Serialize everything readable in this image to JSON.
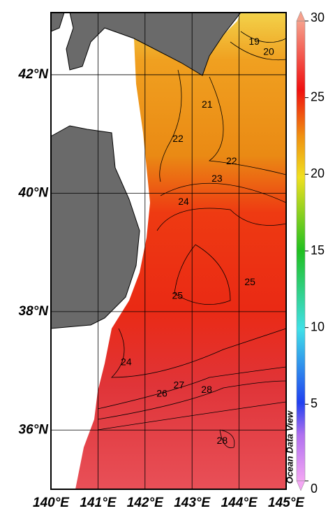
{
  "map": {
    "xlim": [
      140,
      145
    ],
    "ylim": [
      35,
      43.05
    ],
    "xticks": [
      {
        "value": 140,
        "label": "140°E"
      },
      {
        "value": 141,
        "label": "141°E"
      },
      {
        "value": 142,
        "label": "142°E"
      },
      {
        "value": 143,
        "label": "143°E"
      },
      {
        "value": 144,
        "label": "144°E"
      },
      {
        "value": 145,
        "label": "145°E"
      }
    ],
    "yticks": [
      {
        "value": 36,
        "label": "36°N"
      },
      {
        "value": 38,
        "label": "38°N"
      },
      {
        "value": 40,
        "label": "40°N"
      },
      {
        "value": 42,
        "label": "42°N"
      }
    ],
    "colorbar": {
      "lim": [
        0,
        30
      ],
      "ticks": [
        0,
        5,
        10,
        15,
        20,
        25,
        30
      ]
    },
    "contour_labels": [
      {
        "value": 19,
        "lon": 144.32,
        "lat": 42.55
      },
      {
        "value": 20,
        "lon": 144.63,
        "lat": 42.38
      },
      {
        "value": 21,
        "lon": 143.32,
        "lat": 41.49
      },
      {
        "value": 22,
        "lon": 142.7,
        "lat": 40.91
      },
      {
        "value": 22,
        "lon": 143.84,
        "lat": 40.53
      },
      {
        "value": 23,
        "lon": 143.53,
        "lat": 40.24
      },
      {
        "value": 24,
        "lon": 142.82,
        "lat": 39.85
      },
      {
        "value": 25,
        "lon": 144.23,
        "lat": 38.49
      },
      {
        "value": 25,
        "lon": 142.69,
        "lat": 38.26
      },
      {
        "value": 24,
        "lon": 141.6,
        "lat": 37.14
      },
      {
        "value": 26,
        "lon": 142.36,
        "lat": 36.61
      },
      {
        "value": 27,
        "lon": 142.72,
        "lat": 36.75
      },
      {
        "value": 28,
        "lon": 143.31,
        "lat": 36.67
      },
      {
        "value": 28,
        "lon": 143.64,
        "lat": 35.81
      }
    ],
    "watermark": "Ocean Data View"
  }
}
